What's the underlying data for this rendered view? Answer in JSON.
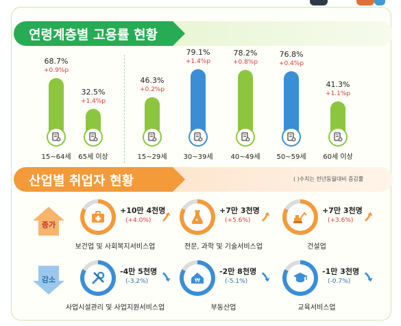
{
  "sections": {
    "age_title": "연령계층별 고용률 현황",
    "industry_title": "산업별 취업자 현황",
    "industry_note": "( )수치는 전년동월대비 증감률"
  },
  "chart_data": {
    "type": "bar",
    "categories": [
      "15~64세",
      "65세 이상",
      "15~29세",
      "30~39세",
      "40~49세",
      "50~59세",
      "60세 이상"
    ],
    "values": [
      68.7,
      32.5,
      46.3,
      79.1,
      78.2,
      76.8,
      41.3
    ],
    "value_labels": [
      "68.7%",
      "32.5%",
      "46.3%",
      "79.1%",
      "78.2%",
      "76.8%",
      "41.3%"
    ],
    "change_labels": [
      "+0.9%p",
      "+1.4%p",
      "+0.2%p",
      "+1.4%p",
      "+0.8%p",
      "+0.4%p",
      "+1.1%p"
    ],
    "colors": [
      "#8cc63f",
      "#8cc63f",
      "#8cc63f",
      "#3a8ed6",
      "#8cc63f",
      "#3a8ed6",
      "#8cc63f"
    ],
    "ylim": [
      0,
      100
    ]
  },
  "industry": {
    "increase_label": "증가",
    "decrease_label": "감소",
    "increase": [
      {
        "name": "보건업 및 사회복지서비스업",
        "amount": "+10만 4천명",
        "rate": "(+4.0%)",
        "icon": "medical-kit-icon"
      },
      {
        "name": "전문, 과학 및 기술서비스업",
        "amount": "+7만 3천명",
        "rate": "(+5.6%)",
        "icon": "lab-flask-icon"
      },
      {
        "name": "건설업",
        "amount": "+7만 3천명",
        "rate": "(+3.6%)",
        "icon": "excavator-icon"
      }
    ],
    "decrease": [
      {
        "name": "사업시설관리 및 사업지원서비스업",
        "amount": "-4만 5천명",
        "rate": "(-3.2%)",
        "icon": "tools-icon"
      },
      {
        "name": "부동산업",
        "amount": "-2만 8천명",
        "rate": "(-5.1%)",
        "icon": "house-won-icon"
      },
      {
        "name": "교육서비스업",
        "amount": "-1만 3천명",
        "rate": "(-0.7%)",
        "icon": "graduation-cap-icon"
      }
    ],
    "colors": {
      "increase": "#f39a3a",
      "decrease": "#3a8ed6"
    }
  }
}
